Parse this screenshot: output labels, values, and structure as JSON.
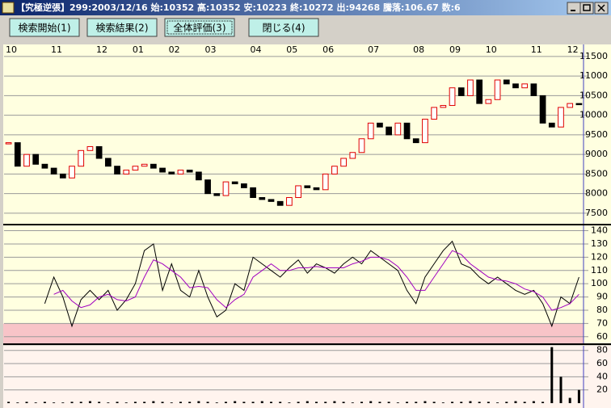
{
  "window": {
    "title": "【究極逆張】299:2003/12/16 始:10352 高:10352 安:10223 終:10272 出:94268 騰落:106.67 数:6",
    "buttons": [
      "検索開始(1)",
      "検索結果(2)",
      "全体評価(3)",
      "閉じる(4)"
    ]
  },
  "chart_data": [
    {
      "type": "candlestick",
      "categories": [
        "10",
        null,
        null,
        null,
        null,
        "11",
        null,
        null,
        null,
        null,
        "12",
        null,
        null,
        null,
        "01",
        null,
        null,
        null,
        "02",
        null,
        null,
        null,
        "03",
        null,
        null,
        null,
        null,
        "04",
        null,
        null,
        null,
        "05",
        null,
        null,
        null,
        "06",
        null,
        null,
        null,
        null,
        "07",
        null,
        null,
        null,
        null,
        "08",
        null,
        null,
        null,
        "09",
        null,
        null,
        null,
        "10",
        null,
        null,
        null,
        null,
        "11",
        null,
        null,
        null,
        "12",
        null
      ],
      "values": [
        9300,
        8700,
        9000,
        8750,
        8650,
        8500,
        8400,
        8700,
        9100,
        9200,
        8900,
        8700,
        8500,
        8600,
        8700,
        8750,
        8650,
        8550,
        8500,
        8600,
        8550,
        8350,
        8000,
        7950,
        8300,
        8250,
        8150,
        7900,
        7850,
        7800,
        7700,
        7900,
        8200,
        8150,
        8100,
        8500,
        8700,
        8900,
        9050,
        9400,
        9800,
        9700,
        9500,
        9800,
        9400,
        9300,
        9900,
        10200,
        10250,
        10700,
        10500,
        10900,
        10300,
        10400,
        10900,
        10800,
        10700,
        10800,
        10500,
        9800,
        9700,
        10200,
        10300,
        10272
      ],
      "up_color": "#e00000",
      "down_color": "#000000",
      "ylim": [
        7230,
        11560
      ],
      "yticks": [
        7500,
        8000,
        8500,
        9000,
        9500,
        10000,
        10500,
        11000,
        11500
      ],
      "grid": true
    },
    {
      "type": "line",
      "series": [
        {
          "color": "#000000",
          "values": [
            null,
            null,
            null,
            null,
            85,
            105,
            90,
            68,
            88,
            95,
            88,
            95,
            80,
            88,
            100,
            125,
            130,
            95,
            115,
            95,
            90,
            110,
            90,
            75,
            80,
            100,
            95,
            120,
            115,
            110,
            105,
            112,
            118,
            108,
            115,
            112,
            108,
            115,
            120,
            115,
            125,
            120,
            115,
            110,
            95,
            85,
            105,
            115,
            125,
            132,
            115,
            112,
            105,
            100,
            105,
            100,
            95,
            92,
            95,
            85,
            68,
            90,
            85,
            105
          ]
        },
        {
          "color": "#a000c0",
          "values": [
            null,
            null,
            null,
            null,
            null,
            92,
            95,
            87,
            82,
            84,
            90,
            92,
            88,
            87,
            90,
            105,
            118,
            115,
            110,
            105,
            97,
            98,
            97,
            88,
            82,
            88,
            92,
            105,
            110,
            115,
            110,
            110,
            112,
            112,
            113,
            112,
            112,
            112,
            115,
            117,
            120,
            120,
            118,
            113,
            105,
            95,
            95,
            105,
            115,
            125,
            122,
            115,
            110,
            105,
            103,
            102,
            100,
            96,
            94,
            90,
            80,
            82,
            85,
            92
          ]
        }
      ],
      "ylim": [
        55,
        144
      ],
      "yticks": [
        60,
        70,
        80,
        90,
        100,
        110,
        120,
        130,
        140
      ],
      "shade_below": 70,
      "shade_color": "#f8c4c8",
      "grid": true
    },
    {
      "type": "bar",
      "values": [
        2,
        1,
        2,
        1,
        2,
        1,
        1,
        2,
        2,
        3,
        2,
        1,
        2,
        1,
        2,
        2,
        3,
        2,
        1,
        2,
        2,
        3,
        2,
        1,
        2,
        3,
        2,
        2,
        3,
        2,
        2,
        1,
        2,
        3,
        2,
        2,
        3,
        2,
        1,
        2,
        3,
        2,
        2,
        1,
        2,
        2,
        3,
        2,
        1,
        2,
        2,
        3,
        2,
        2,
        1,
        2,
        3,
        2,
        3,
        2,
        85,
        40,
        8,
        20
      ],
      "color": "#000000",
      "ylim": [
        0,
        87
      ],
      "yticks": [
        20,
        40,
        60,
        80
      ],
      "grid": true
    }
  ]
}
